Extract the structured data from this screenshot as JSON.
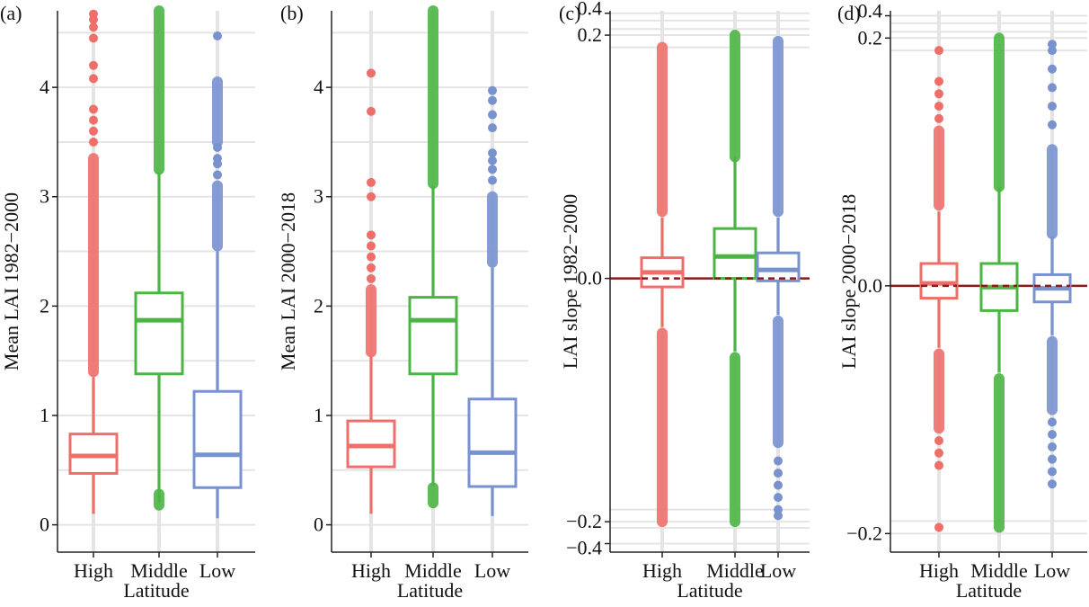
{
  "colors": {
    "high": "#ee6f6a",
    "middle": "#4bb544",
    "low": "#7891cf",
    "refline": "#8b1a1a",
    "grid": "#e4e4e4"
  },
  "chart_data": [
    {
      "type": "box",
      "panel_label": "(a)",
      "ylabel": "Mean LAI 1982−2000",
      "xlabel": "Latitude",
      "categories": [
        "High",
        "Middle",
        "Low"
      ],
      "ylim": [
        -0.25,
        4.7
      ],
      "yticks": [
        0,
        1,
        2,
        3,
        4
      ],
      "ytick_labels": [
        "0",
        "1",
        "2",
        "3",
        "4"
      ],
      "minor_gridlines": [
        0.5,
        1.5,
        2.5,
        3.5,
        4.5
      ],
      "reference_line": null,
      "series": [
        {
          "name": "High",
          "q1": 0.47,
          "median": 0.63,
          "q3": 0.83,
          "whisker_low": 0.1,
          "whisker_high": 1.35,
          "outliers_dense": [
            [
              1.4,
              3.35
            ]
          ],
          "outliers": [
            3.5,
            3.6,
            3.7,
            3.8,
            4.08,
            4.2,
            4.45,
            4.55,
            4.62,
            4.67
          ]
        },
        {
          "name": "Middle",
          "q1": 1.38,
          "median": 1.87,
          "q3": 2.12,
          "whisker_low": 0.2,
          "whisker_high": 3.22,
          "outliers_dense": [
            [
              3.25,
              4.7
            ],
            [
              0.18,
              0.28
            ]
          ],
          "outliers": []
        },
        {
          "name": "Low",
          "q1": 0.34,
          "median": 0.64,
          "q3": 1.22,
          "whisker_low": 0.06,
          "whisker_high": 2.5,
          "outliers_dense": [
            [
              2.55,
              3.1
            ],
            [
              3.5,
              4.05
            ]
          ],
          "outliers": [
            3.2,
            3.3,
            3.35,
            3.45,
            4.47
          ]
        }
      ]
    },
    {
      "type": "box",
      "panel_label": "(b)",
      "ylabel": "Mean LAI 2000−2018",
      "xlabel": "Latitude",
      "categories": [
        "High",
        "Middle",
        "Low"
      ],
      "ylim": [
        -0.25,
        4.7
      ],
      "yticks": [
        0,
        1,
        2,
        3,
        4
      ],
      "ytick_labels": [
        "0",
        "1",
        "2",
        "3",
        "4"
      ],
      "minor_gridlines": [
        0.5,
        1.5,
        2.5,
        3.5,
        4.5
      ],
      "reference_line": null,
      "series": [
        {
          "name": "High",
          "q1": 0.53,
          "median": 0.72,
          "q3": 0.95,
          "whisker_low": 0.1,
          "whisker_high": 1.55,
          "outliers_dense": [
            [
              1.58,
              2.15
            ]
          ],
          "outliers": [
            2.25,
            2.35,
            2.45,
            2.55,
            2.65,
            3.0,
            3.13,
            3.78,
            4.13
          ]
        },
        {
          "name": "Middle",
          "q1": 1.38,
          "median": 1.87,
          "q3": 2.08,
          "whisker_low": 0.35,
          "whisker_high": 3.1,
          "outliers_dense": [
            [
              3.12,
              4.7
            ],
            [
              0.2,
              0.34
            ]
          ],
          "outliers": []
        },
        {
          "name": "Low",
          "q1": 0.35,
          "median": 0.66,
          "q3": 1.15,
          "whisker_low": 0.08,
          "whisker_high": 2.35,
          "outliers_dense": [
            [
              2.4,
              3.0
            ]
          ],
          "outliers": [
            3.15,
            3.25,
            3.33,
            3.4,
            3.63,
            3.75,
            3.88,
            3.97
          ]
        }
      ]
    },
    {
      "type": "box",
      "panel_label": "(c)",
      "ylabel": "LAI slope 1982−2000",
      "xlabel": "Latitude",
      "categories": [
        "High",
        "Middle",
        "Low"
      ],
      "ylim": [
        -0.225,
        0.22
      ],
      "yticks": [
        -0.2,
        0.0,
        0.2
      ],
      "ytick_labels": [
        "−0.2",
        "0.0",
        "0.2"
      ],
      "extra_ticks": [
        {
          "value": -0.218,
          "label": "−0.4"
        },
        {
          "value": 0.218,
          "label": "0.4"
        }
      ],
      "minor_gridlines": [
        -0.205,
        -0.19,
        0.19,
        0.205,
        0.212
      ],
      "reference_line": 0,
      "series": [
        {
          "name": "High",
          "q1": -0.007,
          "median": 0.005,
          "q3": 0.017,
          "whisker_low": -0.04,
          "whisker_high": 0.05,
          "outliers_dense": [
            [
              0.055,
              0.19
            ],
            [
              -0.2,
              -0.045
            ]
          ],
          "outliers": []
        },
        {
          "name": "Middle",
          "q1": 0.0,
          "median": 0.018,
          "q3": 0.041,
          "whisker_low": -0.06,
          "whisker_high": 0.1,
          "outliers_dense": [
            [
              0.1,
              0.2
            ],
            [
              -0.2,
              -0.065
            ]
          ],
          "outliers": []
        },
        {
          "name": "Low",
          "q1": -0.002,
          "median": 0.007,
          "q3": 0.021,
          "whisker_low": -0.03,
          "whisker_high": 0.05,
          "outliers_dense": [
            [
              0.055,
              0.195
            ],
            [
              -0.135,
              -0.035
            ]
          ],
          "outliers": [
            -0.15,
            -0.16,
            -0.17,
            -0.18,
            -0.19,
            -0.195
          ]
        }
      ]
    },
    {
      "type": "box",
      "panel_label": "(d)",
      "ylabel": "LAI slope 2000−2018",
      "xlabel": "Latitude",
      "categories": [
        "High",
        "Middle",
        "Low"
      ],
      "ylim": [
        -0.215,
        0.222
      ],
      "yticks": [
        -0.2,
        0.0,
        0.2
      ],
      "ytick_labels": [
        "−0.2",
        "0.0",
        "0.2"
      ],
      "extra_ticks": [
        {
          "value": 0.218,
          "label": "0.4"
        }
      ],
      "minor_gridlines": [
        -0.19,
        0.19,
        0.205,
        0.212
      ],
      "reference_line": 0,
      "series": [
        {
          "name": "High",
          "q1": -0.01,
          "median": 0.002,
          "q3": 0.018,
          "whisker_low": -0.05,
          "whisker_high": 0.06,
          "outliers_dense": [
            [
              0.065,
              0.125
            ],
            [
              -0.115,
              -0.055
            ]
          ],
          "outliers": [
            0.135,
            0.145,
            0.155,
            0.165,
            0.19,
            -0.125,
            -0.135,
            -0.145,
            -0.195
          ]
        },
        {
          "name": "Middle",
          "q1": -0.02,
          "median": -0.001,
          "q3": 0.018,
          "whisker_low": -0.07,
          "whisker_high": 0.08,
          "outliers_dense": [
            [
              0.08,
              0.2
            ],
            [
              -0.195,
              -0.075
            ]
          ],
          "outliers": []
        },
        {
          "name": "Low",
          "q1": -0.013,
          "median": -0.002,
          "q3": 0.009,
          "whisker_low": -0.04,
          "whisker_high": 0.04,
          "outliers_dense": [
            [
              0.042,
              0.11
            ],
            [
              -0.1,
              -0.045
            ]
          ],
          "outliers": [
            0.13,
            0.145,
            0.16,
            0.175,
            0.19,
            0.195,
            -0.11,
            -0.12,
            -0.13,
            -0.14,
            -0.15,
            -0.16
          ]
        }
      ]
    }
  ]
}
